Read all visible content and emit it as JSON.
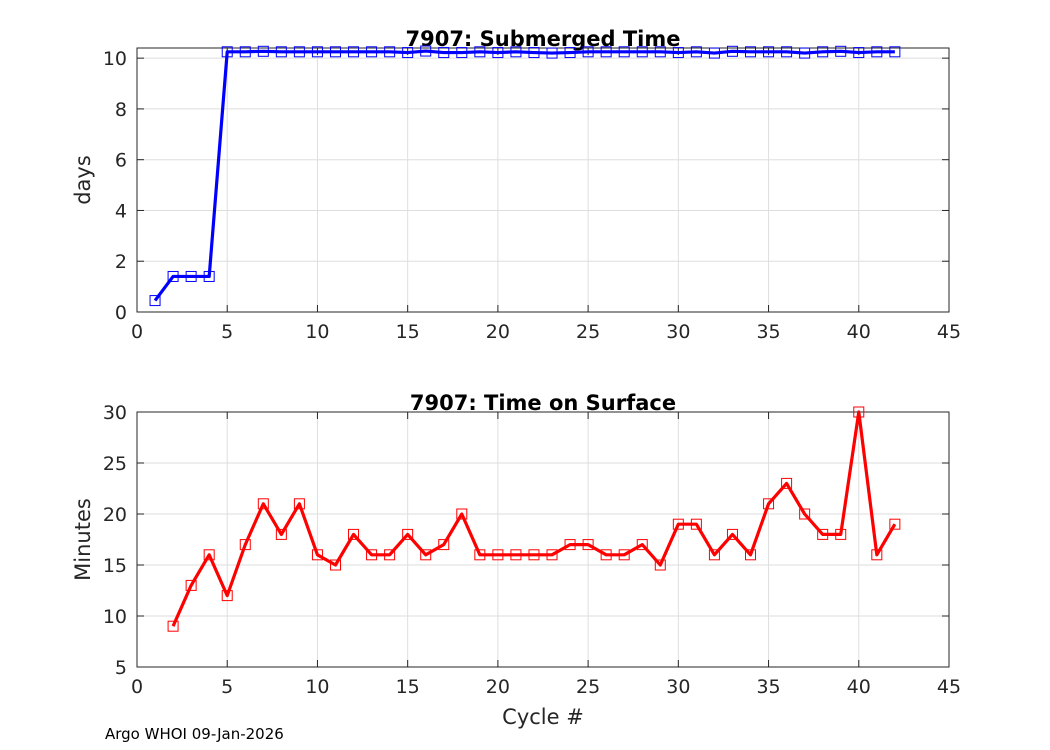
{
  "footer": "Argo WHOI 09-Jan-2026",
  "chart_data": [
    {
      "type": "line",
      "title": "7907: Submerged Time",
      "xlabel": "",
      "ylabel": "days",
      "xlim": [
        0,
        45
      ],
      "ylim": [
        0,
        10.4
      ],
      "xticks": [
        0,
        5,
        10,
        15,
        20,
        25,
        30,
        35,
        40,
        45
      ],
      "yticks": [
        0,
        2,
        4,
        6,
        8,
        10
      ],
      "grid": true,
      "color": "#0000ff",
      "series": [
        {
          "name": "Submerged Time",
          "x": [
            1,
            2,
            3,
            4,
            5,
            6,
            7,
            8,
            9,
            10,
            11,
            12,
            13,
            14,
            15,
            16,
            17,
            18,
            19,
            20,
            21,
            22,
            23,
            24,
            25,
            26,
            27,
            28,
            29,
            30,
            31,
            32,
            33,
            34,
            35,
            36,
            37,
            38,
            39,
            40,
            41,
            42
          ],
          "values": [
            0.45,
            1.4,
            1.4,
            1.4,
            10.25,
            10.25,
            10.27,
            10.25,
            10.25,
            10.25,
            10.25,
            10.25,
            10.25,
            10.25,
            10.22,
            10.28,
            10.22,
            10.22,
            10.25,
            10.22,
            10.25,
            10.22,
            10.2,
            10.22,
            10.25,
            10.25,
            10.25,
            10.25,
            10.25,
            10.22,
            10.25,
            10.2,
            10.27,
            10.25,
            10.25,
            10.25,
            10.2,
            10.25,
            10.27,
            10.22,
            10.25,
            10.25
          ]
        }
      ]
    },
    {
      "type": "line",
      "title": "7907: Time on Surface",
      "xlabel": "Cycle #",
      "ylabel": "Minutes",
      "xlim": [
        0,
        45
      ],
      "ylim": [
        5,
        30
      ],
      "xticks": [
        0,
        5,
        10,
        15,
        20,
        25,
        30,
        35,
        40,
        45
      ],
      "yticks": [
        5,
        10,
        15,
        20,
        25,
        30
      ],
      "grid": true,
      "color": "#ff0000",
      "series": [
        {
          "name": "Time on Surface",
          "x": [
            2,
            3,
            4,
            5,
            6,
            7,
            8,
            9,
            10,
            11,
            12,
            13,
            14,
            15,
            16,
            17,
            18,
            19,
            20,
            21,
            22,
            23,
            24,
            25,
            26,
            27,
            28,
            29,
            30,
            31,
            32,
            33,
            34,
            35,
            36,
            37,
            38,
            39,
            40,
            41,
            42
          ],
          "values": [
            9,
            13,
            16,
            12,
            17,
            21,
            18,
            21,
            16,
            15,
            18,
            16,
            16,
            18,
            16,
            17,
            20,
            16,
            16,
            16,
            16,
            16,
            17,
            17,
            16,
            16,
            17,
            15,
            19,
            19,
            16,
            18,
            16,
            21,
            23,
            20,
            18,
            18,
            30,
            16,
            19
          ]
        }
      ]
    }
  ]
}
